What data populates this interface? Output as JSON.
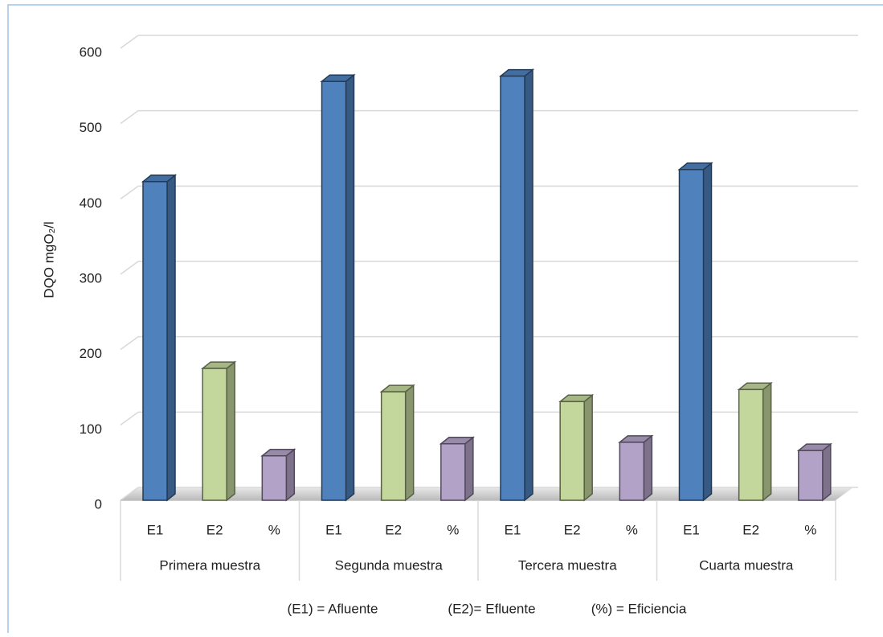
{
  "chart_data": {
    "type": "bar",
    "y_label": "DQO mgO₂/l",
    "categories": [
      "Primera muestra",
      "Segunda muestra",
      "Tercera muestra",
      "Cuarta muestra"
    ],
    "series": [
      {
        "name": "E1",
        "color": "#4f81bd",
        "values": [
          423,
          556,
          563,
          439
        ]
      },
      {
        "name": "E2",
        "color": "#c3d69b",
        "values": [
          175,
          144,
          131,
          147
        ]
      },
      {
        "name": "%",
        "color": "#b3a2c7",
        "values": [
          59,
          75,
          77,
          66
        ]
      }
    ],
    "ylim": [
      0,
      600
    ],
    "yticks": [
      0,
      100,
      200,
      300,
      400,
      500,
      600
    ],
    "grid": true,
    "notes": [
      "(E1) = Afluente",
      "(E2)= Efluente",
      "(%) = Eficiencia"
    ]
  }
}
